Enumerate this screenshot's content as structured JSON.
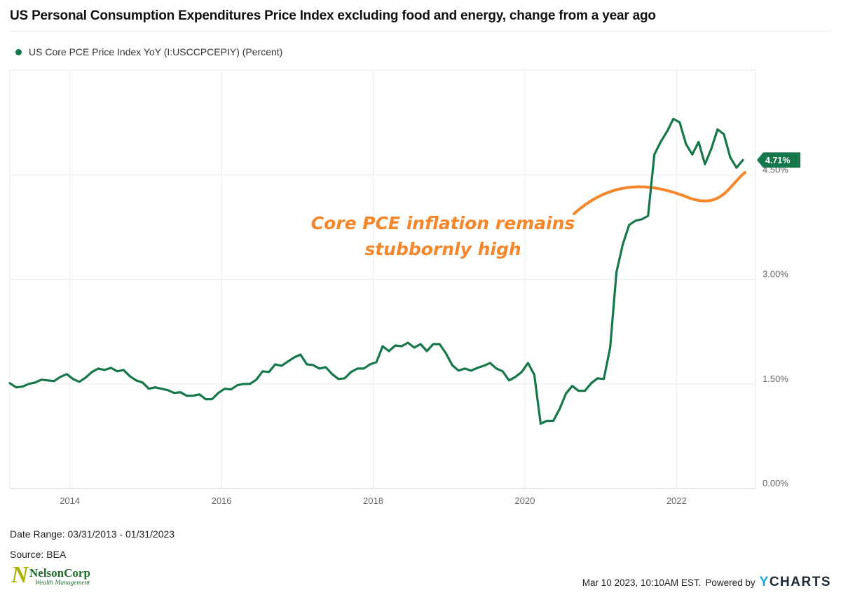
{
  "title": "US Personal Consumption Expenditures Price Index excluding food and energy, change from a year ago",
  "legend": {
    "label": "US Core PCE Price Index YoY (I:USCCPCEPIY) (Percent)",
    "color": "#16784a"
  },
  "annotation": {
    "line1": "Core PCE inflation remains",
    "line2": "stubbornly high",
    "color": "#f5862a"
  },
  "last_value_label": "4.71%",
  "footer": {
    "date_range": "Date Range: 03/31/2013 - 01/31/2023",
    "source": "Source: BEA",
    "timestamp": "Mar 10 2023, 10:10AM EST.",
    "powered_by": "Powered by",
    "brand_y": "Y",
    "brand_rest": "CHARTS"
  },
  "logo": {
    "name": "NelsonCorp",
    "sub": "Wealth Management",
    "mark": "N"
  },
  "chart_data": {
    "type": "line",
    "title": "US Personal Consumption Expenditures Price Index excluding food and energy, change from a year ago",
    "y_axis_side": "right",
    "ylim": [
      0,
      6
    ],
    "y_ticks": [
      0,
      1.5,
      3,
      4.5
    ],
    "y_tick_labels": [
      "0.00%",
      "1.50%",
      "3.00%",
      "4.50%"
    ],
    "x_ticks": [
      "2014",
      "2016",
      "2018",
      "2020",
      "2022"
    ],
    "x_range": [
      "2013-03",
      "2023-01"
    ],
    "grid": "vertical and horizontal",
    "legend_position": "top-left",
    "series": [
      {
        "name": "US Core PCE Price Index YoY (I:USCCPCEPIY) (Percent)",
        "color": "#16784a",
        "start": "2013-03",
        "frequency": "monthly",
        "values": [
          1.51,
          1.45,
          1.46,
          1.5,
          1.52,
          1.56,
          1.55,
          1.54,
          1.6,
          1.64,
          1.57,
          1.53,
          1.59,
          1.67,
          1.72,
          1.7,
          1.73,
          1.68,
          1.7,
          1.61,
          1.55,
          1.52,
          1.43,
          1.45,
          1.43,
          1.41,
          1.37,
          1.38,
          1.33,
          1.33,
          1.35,
          1.28,
          1.28,
          1.37,
          1.43,
          1.42,
          1.48,
          1.5,
          1.5,
          1.56,
          1.68,
          1.67,
          1.78,
          1.76,
          1.82,
          1.88,
          1.92,
          1.78,
          1.77,
          1.72,
          1.74,
          1.64,
          1.57,
          1.58,
          1.67,
          1.72,
          1.72,
          1.78,
          1.81,
          2.04,
          1.97,
          2.05,
          2.04,
          2.09,
          2.02,
          2.07,
          1.97,
          2.07,
          2.07,
          1.94,
          1.77,
          1.69,
          1.72,
          1.69,
          1.73,
          1.76,
          1.8,
          1.72,
          1.68,
          1.55,
          1.6,
          1.67,
          1.8,
          1.63,
          0.93,
          0.97,
          0.97,
          1.14,
          1.36,
          1.47,
          1.4,
          1.4,
          1.51,
          1.58,
          1.57,
          2.02,
          3.1,
          3.5,
          3.78,
          3.84,
          3.86,
          3.91,
          4.79,
          4.97,
          5.12,
          5.3,
          5.25,
          4.94,
          4.79,
          4.97,
          4.65,
          4.87,
          5.15,
          5.08,
          4.75,
          4.6,
          4.71
        ]
      }
    ],
    "annotation": "Core PCE inflation remains stubbornly high",
    "last_value": 4.71
  }
}
